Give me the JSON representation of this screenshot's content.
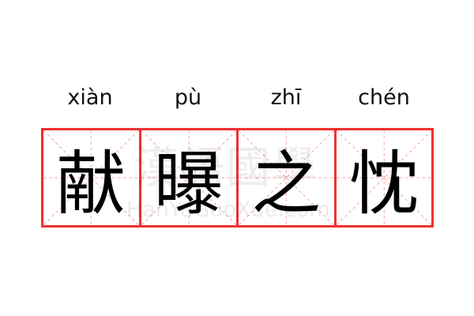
{
  "pinyin": [
    "xiàn",
    "pù",
    "zhī",
    "chén"
  ],
  "characters": [
    "献",
    "曝",
    "之",
    "忱"
  ],
  "watermark": {
    "logo": "漢語國學",
    "site": "HanYuGuoXue.com"
  },
  "colors": {
    "grid_border": "#f03030",
    "guide_lines": "#f5a0a0"
  }
}
